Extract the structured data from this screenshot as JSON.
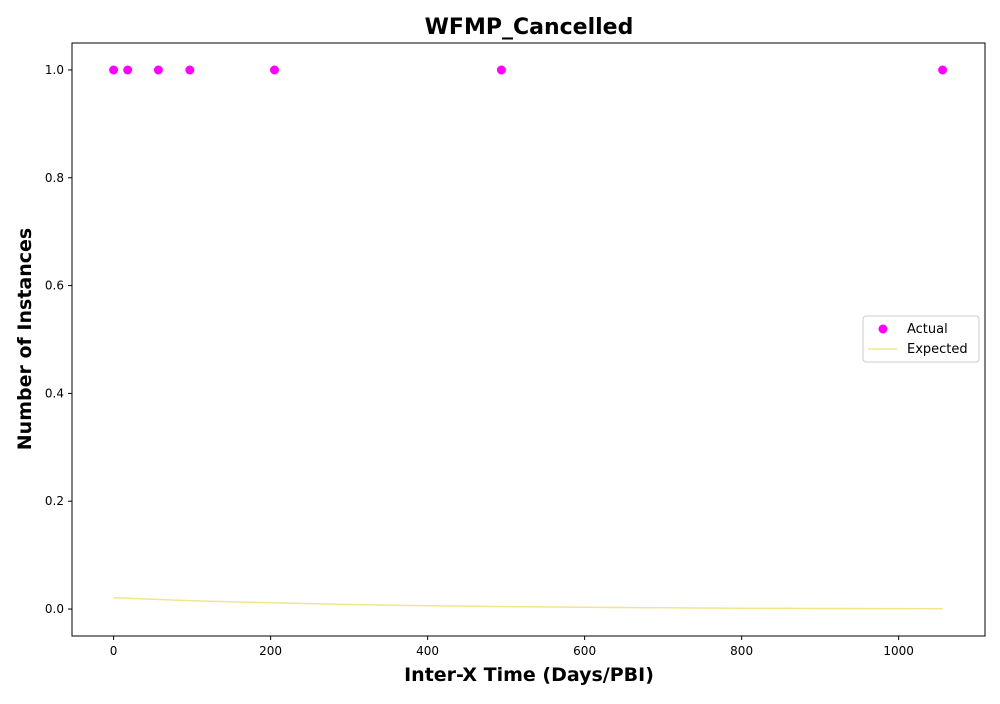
{
  "chart_data": {
    "type": "scatter",
    "title": "WFMP_Cancelled",
    "xlabel": "Inter-X Time (Days/PBI)",
    "ylabel": "Number of Instances",
    "xlim": [
      -53,
      1110
    ],
    "ylim": [
      -0.05,
      1.05
    ],
    "xticks": [
      0,
      200,
      400,
      600,
      800,
      1000
    ],
    "yticks": [
      0.0,
      0.2,
      0.4,
      0.6,
      0.8,
      1.0
    ],
    "xtick_labels": [
      "0",
      "200",
      "400",
      "600",
      "800",
      "1000"
    ],
    "ytick_labels": [
      "0.0",
      "0.2",
      "0.4",
      "0.6",
      "0.8",
      "1.0"
    ],
    "grid": false,
    "legend_position": "center-right",
    "series": [
      {
        "name": "Actual",
        "kind": "scatter",
        "color": "#ff00ff",
        "x": [
          0,
          18,
          57,
          97,
          205,
          494,
          1056
        ],
        "y": [
          1,
          1,
          1,
          1,
          1,
          1,
          1
        ]
      },
      {
        "name": "Expected",
        "kind": "line",
        "color": "#f0e68c",
        "x": [
          0,
          100,
          200,
          300,
          400,
          500,
          600,
          700,
          800,
          900,
          1000,
          1056
        ],
        "y": [
          0.021,
          0.0155,
          0.0115,
          0.0085,
          0.0062,
          0.0045,
          0.0032,
          0.0023,
          0.0016,
          0.0011,
          0.0008,
          0.0006
        ]
      }
    ],
    "legend": [
      "Actual",
      "Expected"
    ]
  }
}
